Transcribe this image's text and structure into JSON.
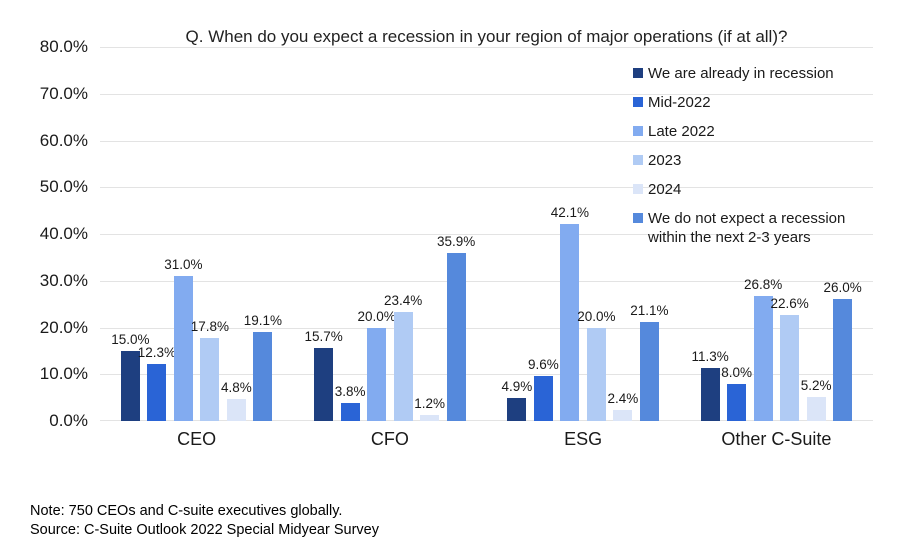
{
  "title": "Q. When do you expect a recession in your region of major operations (if at all)?",
  "chart_data": {
    "type": "bar",
    "title": "Q. When do you expect a recession in your region of major operations (if at all)?",
    "categories": [
      "CEO",
      "CFO",
      "ESG",
      "Other C-Suite"
    ],
    "series": [
      {
        "name": "We are already in recession",
        "color": "#1E3F80",
        "values": [
          15.0,
          15.7,
          4.9,
          11.3
        ]
      },
      {
        "name": "Mid-2022",
        "color": "#2A64D6",
        "values": [
          12.3,
          3.8,
          9.6,
          8.0
        ]
      },
      {
        "name": "Late 2022",
        "color": "#82ABF0",
        "values": [
          31.0,
          20.0,
          42.1,
          26.8
        ]
      },
      {
        "name": "2023",
        "color": "#B0CBF4",
        "values": [
          17.8,
          23.4,
          20.0,
          22.6
        ]
      },
      {
        "name": "2024",
        "color": "#DBE5F8",
        "values": [
          4.8,
          1.2,
          2.4,
          5.2
        ]
      },
      {
        "name": "We do not expect a recession within the next 2-3 years",
        "color": "#5589DC",
        "values": [
          19.1,
          35.9,
          21.1,
          26.0
        ]
      }
    ],
    "ylim": [
      0,
      80
    ],
    "ytick_step": 10,
    "yticks": [
      "0.0%",
      "10.0%",
      "20.0%",
      "30.0%",
      "40.0%",
      "50.0%",
      "60.0%",
      "70.0%",
      "80.0%"
    ],
    "grid": true,
    "legend_position": "inside-top-right",
    "data_labels": true,
    "data_label_suffix": "%",
    "gridline_color": "#E3E3E3"
  },
  "footer": {
    "note": "Note: 750 CEOs and C-suite executives globally.",
    "source": "Source: C-Suite Outlook 2022 Special Midyear Survey"
  }
}
